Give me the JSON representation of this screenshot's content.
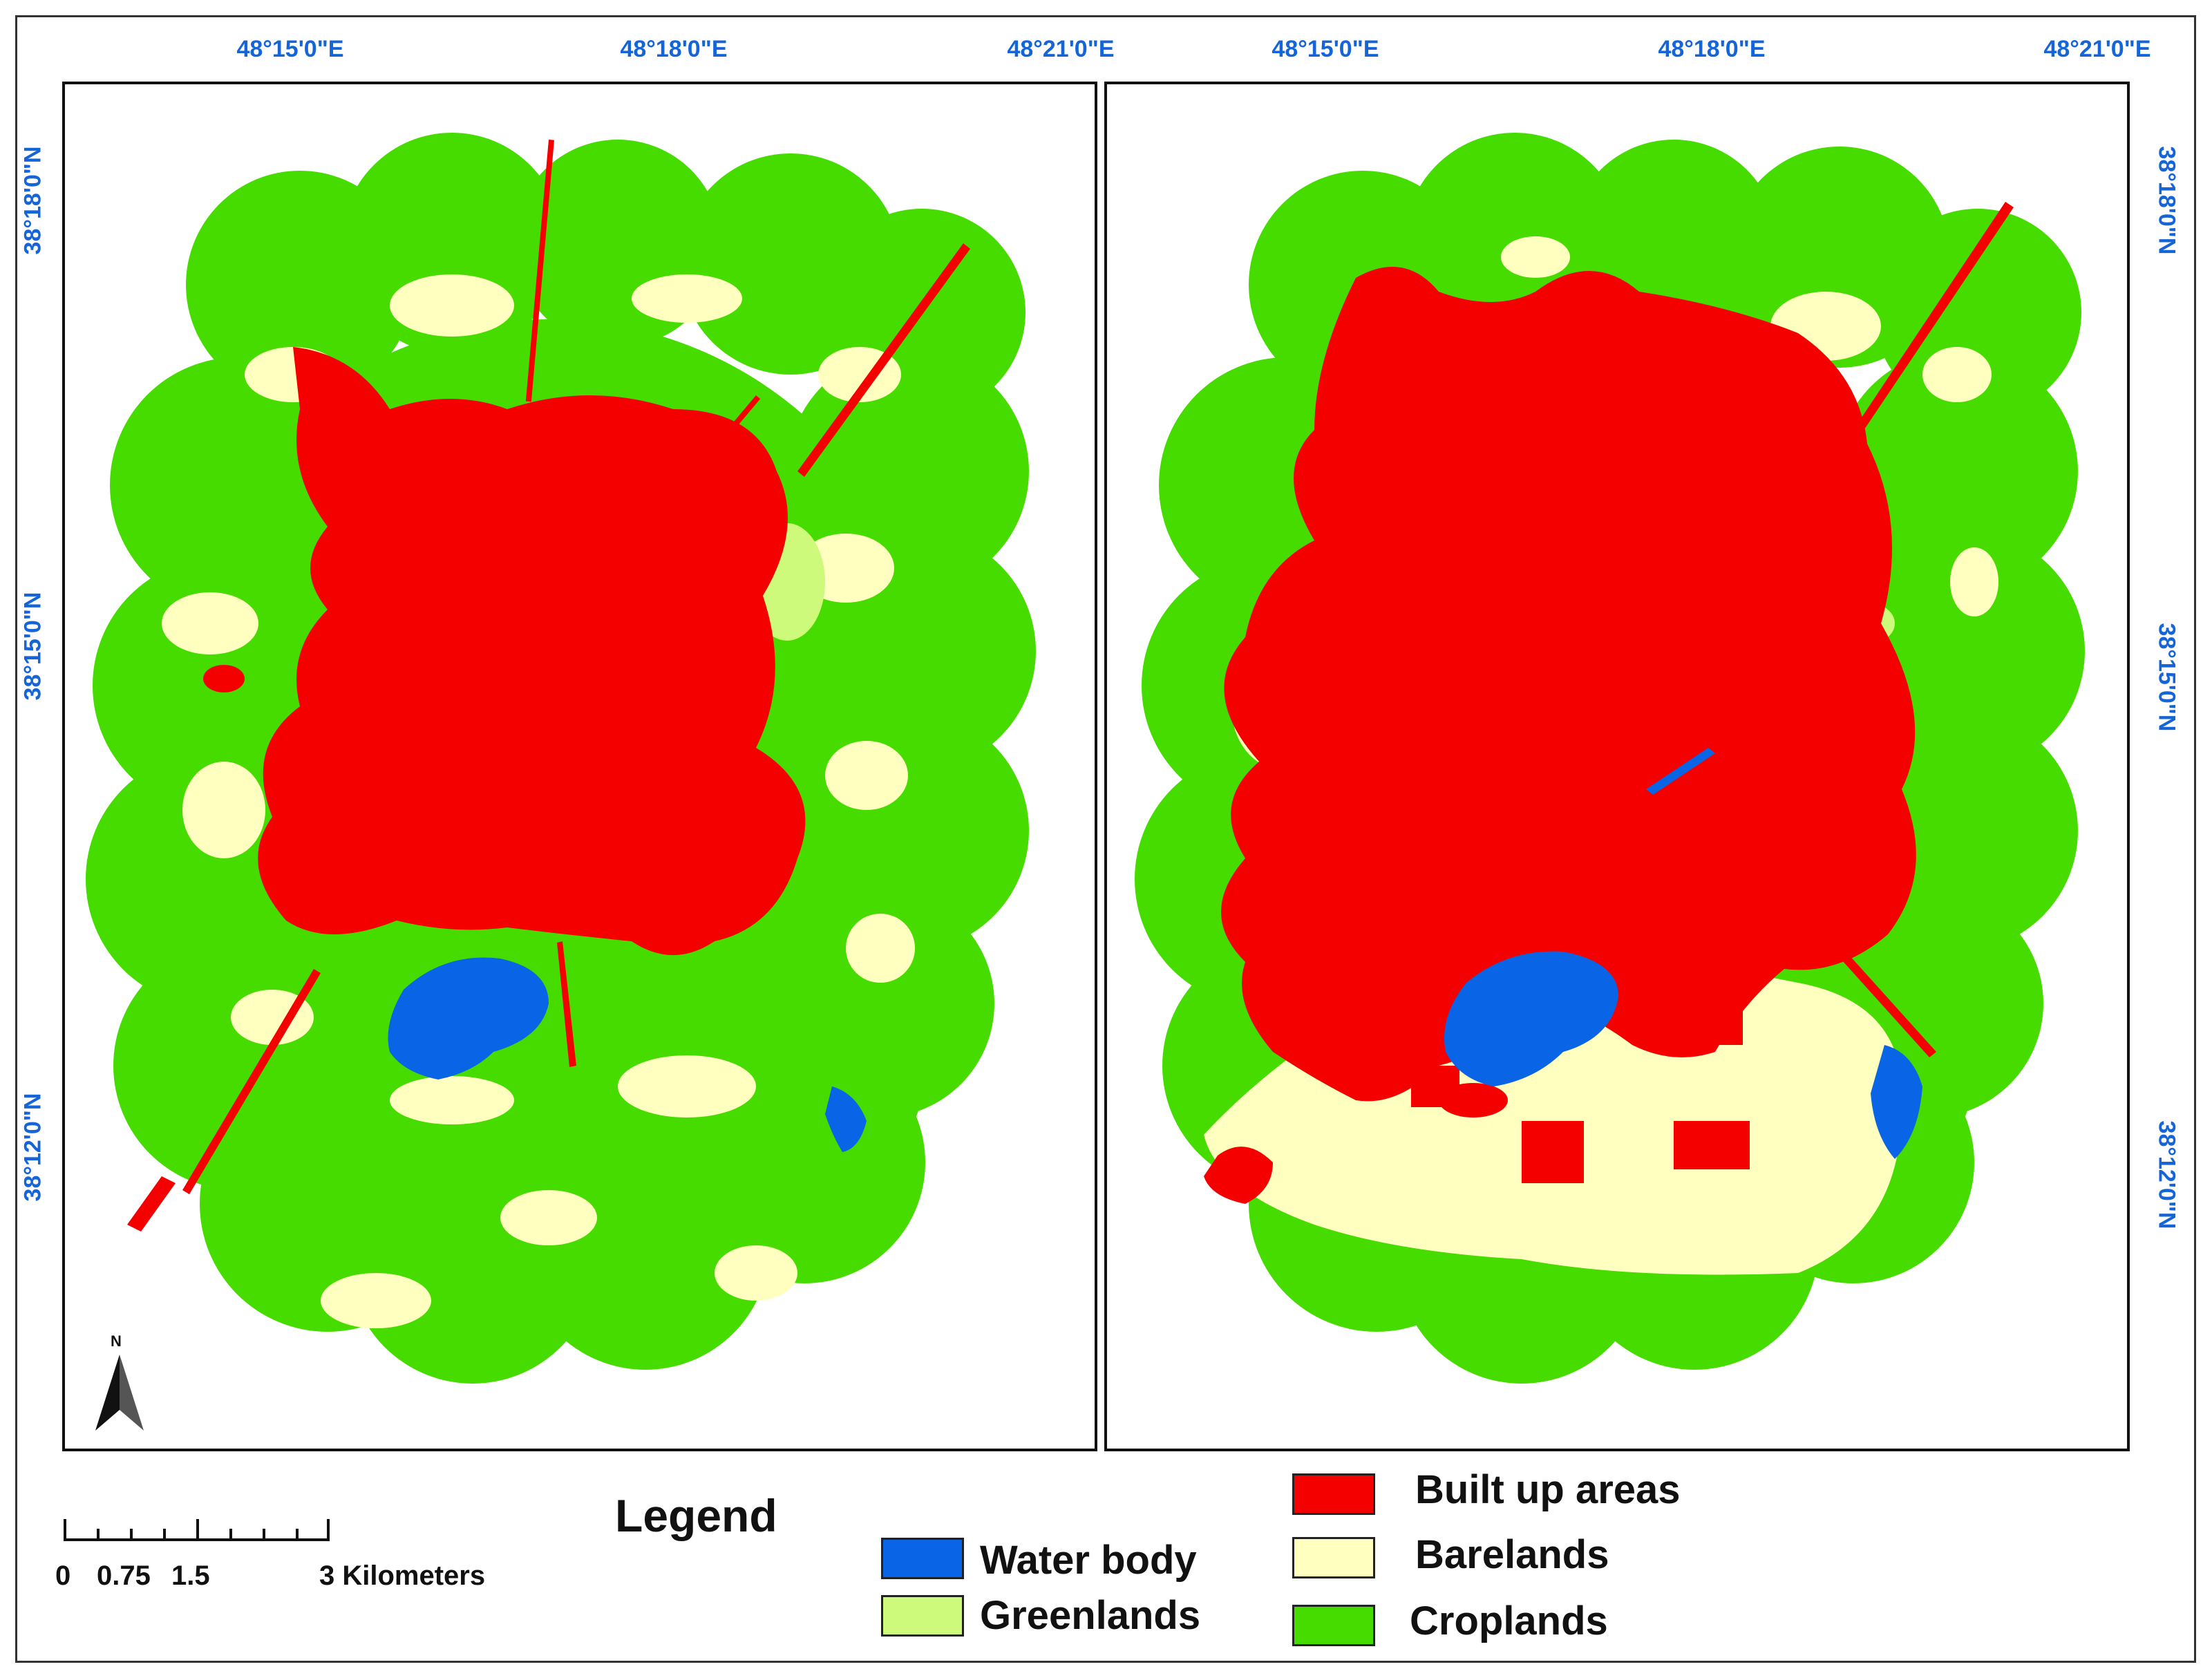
{
  "coordinates": {
    "top_longitudes": [
      "48°15'0\"E",
      "48°18'0\"E",
      "48°21'0\"E"
    ],
    "left_latitudes": [
      "38°18'0\"N",
      "38°15'0\"N",
      "38°12'0\"N"
    ],
    "right_latitudes": [
      "38°18'0\"N",
      "38°15'0\"N",
      "38°12'0\"N"
    ]
  },
  "north_arrow": {
    "letter": "N"
  },
  "scale_bar": {
    "labels": [
      "0",
      "0.75",
      "1.5",
      "3 Kilometers"
    ]
  },
  "legend": {
    "title": "Legend",
    "items": [
      {
        "label": "Water body",
        "color": "#0a64e6"
      },
      {
        "label": "Greenlands",
        "color": "#cdfa7a"
      },
      {
        "label": "Built up areas",
        "color": "#f50000"
      },
      {
        "label": "Barelands",
        "color": "#ffffc0"
      },
      {
        "label": "Croplands",
        "color": "#46dc00"
      }
    ]
  }
}
